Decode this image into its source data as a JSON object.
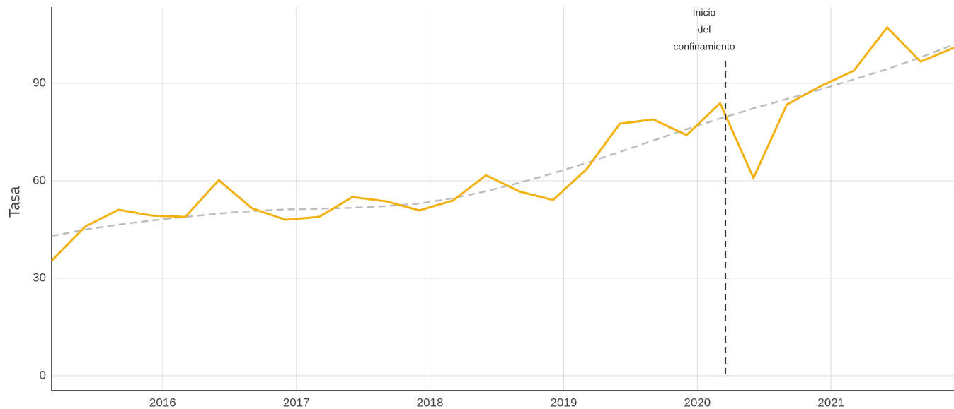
{
  "chart_data": {
    "type": "line",
    "y_label": "Tasa",
    "x": [
      2015.17,
      2015.42,
      2015.67,
      2015.92,
      2016.17,
      2016.42,
      2016.67,
      2016.92,
      2017.17,
      2017.42,
      2017.67,
      2017.92,
      2018.17,
      2018.42,
      2018.67,
      2018.92,
      2019.17,
      2019.42,
      2019.67,
      2019.92,
      2020.17,
      2020.42,
      2020.67,
      2020.92,
      2021.17,
      2021.42,
      2021.67,
      2021.92
    ],
    "series": [
      {
        "color": "#f2b10f",
        "values": [
          35.4,
          45.9,
          51.1,
          49.3,
          48.9,
          60.2,
          51.5,
          48.0,
          48.9,
          55.0,
          53.7,
          50.9,
          53.9,
          61.7,
          56.7,
          54.1,
          63.5,
          77.6,
          78.9,
          74.1,
          83.9,
          60.9,
          83.5,
          89.1,
          93.9,
          107.2,
          96.7,
          101.0
        ]
      },
      {
        "color": "#bdbdbd",
        "dashed": true,
        "values": [
          43.0,
          45.0,
          46.5,
          47.8,
          48.9,
          49.9,
          50.7,
          51.2,
          51.4,
          51.7,
          52.2,
          53.0,
          54.6,
          56.8,
          59.4,
          62.3,
          65.5,
          68.9,
          72.4,
          75.9,
          79.2,
          82.3,
          85.2,
          88.1,
          91.2,
          94.4,
          98.0,
          102.0
        ]
      }
    ],
    "vline": {
      "x": 2020.21,
      "color": "#333333",
      "label": [
        "Inicio",
        "del",
        "confinamiento"
      ]
    },
    "xlim": [
      2015.17,
      2021.92
    ],
    "xticks": [
      2016,
      2017,
      2018,
      2019,
      2020,
      2021
    ],
    "ylim": [
      -4.6,
      113.5
    ],
    "yticks": [
      0,
      30,
      60,
      90
    ],
    "grid": true
  }
}
